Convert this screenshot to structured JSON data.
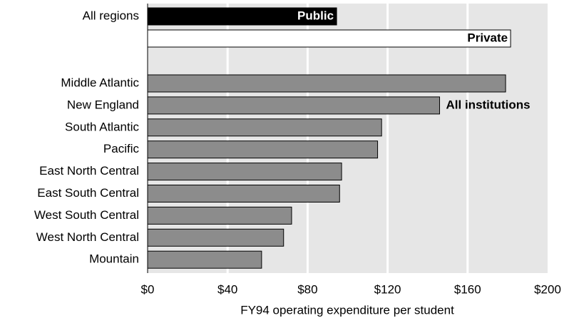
{
  "chart_data": {
    "type": "bar",
    "orientation": "horizontal",
    "x_label": "FY94 operating expenditure per student",
    "all_regions": {
      "label": "All regions",
      "bars": [
        {
          "name": "Public",
          "value": 94.5,
          "color": "#000000",
          "text_color": "#ffffff"
        },
        {
          "name": "Private",
          "value": 181.5,
          "color": "#ffffff",
          "text_color": "#000000"
        }
      ]
    },
    "categories": [
      "Middle Atlantic",
      "New England",
      "South Atlantic",
      "Pacific",
      "East North Central",
      "East South Central",
      "West South Central",
      "West North Central",
      "Mountain"
    ],
    "series": [
      {
        "name": "All institutions",
        "color": "#8c8c8c",
        "values": [
          179,
          146,
          117,
          115,
          97,
          96,
          72,
          68,
          57
        ]
      }
    ],
    "xlim": [
      0,
      200
    ],
    "xticks": [
      {
        "value": 0,
        "label": "$0"
      },
      {
        "value": 40,
        "label": "$40"
      },
      {
        "value": 80,
        "label": "$80"
      },
      {
        "value": 120,
        "label": "$120"
      },
      {
        "value": 160,
        "label": "$160"
      },
      {
        "value": 200,
        "label": "$200"
      }
    ],
    "grid": true
  }
}
